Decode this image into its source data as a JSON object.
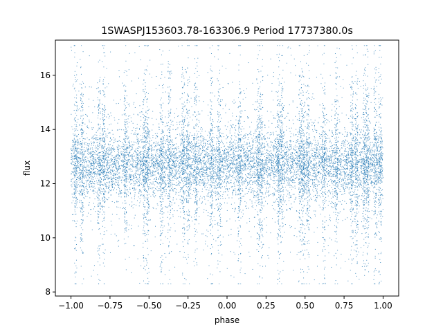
{
  "chart_data": {
    "type": "scatter",
    "title": "1SWASPJ153603.78-163306.9 Period 17737380.0s",
    "xlabel": "phase",
    "ylabel": "flux",
    "xlim": [
      -1.1,
      1.1
    ],
    "ylim": [
      7.85,
      17.3
    ],
    "xticks": [
      -1.0,
      -0.75,
      -0.5,
      -0.25,
      0.0,
      0.25,
      0.5,
      0.75,
      1.0
    ],
    "xtick_labels": [
      "−1.00",
      "−0.75",
      "−0.50",
      "−0.25",
      "0.00",
      "0.25",
      "0.50",
      "0.75",
      "1.00"
    ],
    "yticks": [
      8,
      10,
      12,
      14,
      16
    ],
    "ytick_labels": [
      "8",
      "10",
      "12",
      "14",
      "16"
    ],
    "grid": false,
    "point_color": "#1f77b4",
    "x_range": [
      -1.0,
      1.0
    ],
    "flux_median": 12.7,
    "flux_core_band": [
      12.0,
      13.4
    ],
    "flux_extent": [
      8.3,
      17.1
    ],
    "dense_phases": [
      -0.97,
      -0.93,
      -0.82,
      -0.79,
      -0.65,
      -0.53,
      -0.51,
      -0.42,
      -0.37,
      -0.28,
      -0.25,
      -0.2,
      -0.1,
      -0.05,
      0.08,
      0.2,
      0.22,
      0.33,
      0.35,
      0.47,
      0.49,
      0.52,
      0.62,
      0.7,
      0.8,
      0.83,
      0.88,
      0.9,
      0.95,
      0.98
    ]
  }
}
